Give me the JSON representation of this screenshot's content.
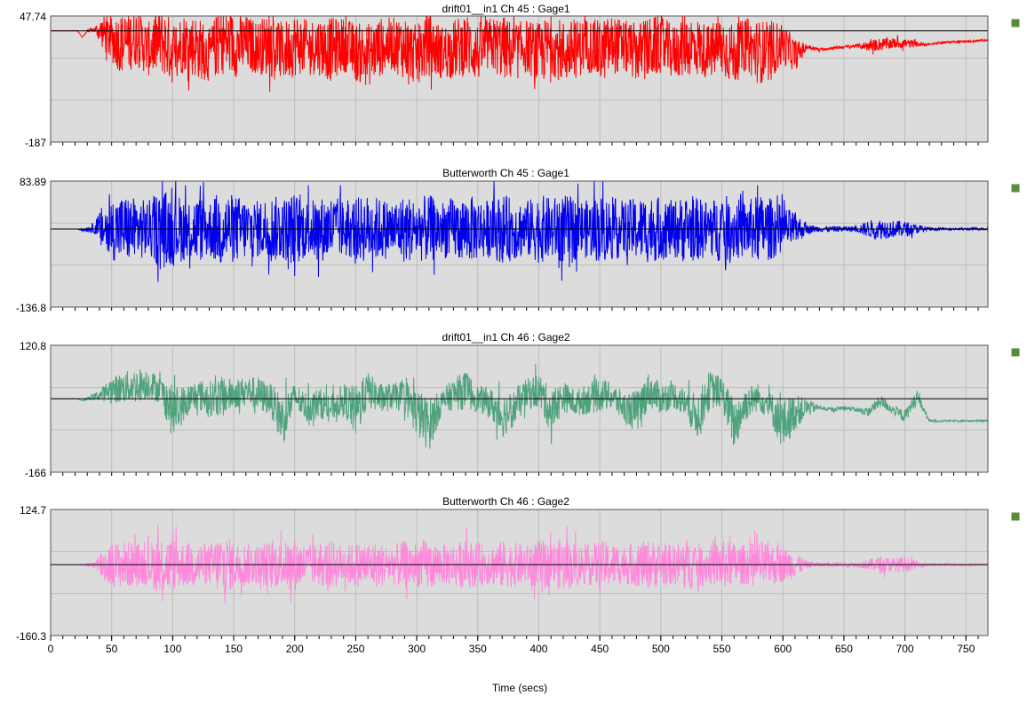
{
  "x_axis": {
    "label": "Time (secs)",
    "range": [
      0,
      768
    ],
    "ticks": [
      "0",
      "50",
      "100",
      "150",
      "200",
      "250",
      "300",
      "350",
      "400",
      "450",
      "500",
      "550",
      "600",
      "650",
      "700",
      "750"
    ],
    "tick_values": [
      0,
      50,
      100,
      150,
      200,
      250,
      300,
      350,
      400,
      450,
      500,
      550,
      600,
      650,
      700,
      750
    ]
  },
  "chart_data": [
    {
      "type": "line",
      "title": "drift01__in1  Ch 45 : Gage1",
      "color": "#ff0000",
      "ylim": [
        -187,
        47.74
      ],
      "y_top_label": "47.74",
      "y_bottom_label": "-187",
      "reference_line": 20,
      "x": [
        0,
        22,
        26,
        30,
        36,
        42,
        50,
        60,
        70,
        80,
        90,
        100,
        110,
        120,
        130,
        140,
        150,
        160,
        170,
        180,
        190,
        200,
        210,
        220,
        230,
        240,
        250,
        260,
        270,
        280,
        290,
        300,
        310,
        320,
        330,
        340,
        350,
        360,
        370,
        380,
        390,
        400,
        410,
        420,
        430,
        440,
        450,
        460,
        470,
        480,
        490,
        500,
        510,
        520,
        530,
        540,
        550,
        560,
        570,
        580,
        590,
        600,
        610,
        620,
        630,
        640,
        650,
        660,
        670,
        680,
        690,
        700,
        710,
        720,
        730,
        740,
        750,
        768
      ],
      "y": [
        20,
        20,
        8,
        20,
        22,
        18,
        5,
        -5,
        10,
        -15,
        5,
        -20,
        0,
        -10,
        -25,
        5,
        -8,
        -5,
        -10,
        -5,
        -20,
        -5,
        -10,
        -8,
        -15,
        -5,
        -20,
        -25,
        -10,
        -5,
        -10,
        -25,
        -5,
        -20,
        -15,
        -5,
        -20,
        -5,
        -10,
        -20,
        -8,
        -25,
        -5,
        -20,
        -15,
        -5,
        -20,
        -5,
        -10,
        -20,
        -15,
        -5,
        -20,
        -5,
        -10,
        -20,
        -8,
        -25,
        -5,
        -20,
        -15,
        -5,
        -25,
        -10,
        -15,
        -12,
        -10,
        -8,
        -8,
        -5,
        -3,
        -3,
        -5,
        -5,
        -2,
        0,
        0,
        3
      ],
      "noise_amplitude": [
        0,
        0,
        0,
        3,
        5,
        30,
        45,
        60,
        55,
        50,
        65,
        60,
        55,
        60,
        50,
        65,
        60,
        55,
        50,
        60,
        55,
        60,
        50,
        55,
        60,
        50,
        55,
        60,
        55,
        50,
        60,
        55,
        60,
        50,
        55,
        60,
        55,
        50,
        60,
        55,
        50,
        60,
        55,
        60,
        55,
        50,
        60,
        55,
        50,
        55,
        60,
        55,
        50,
        60,
        55,
        50,
        60,
        55,
        50,
        60,
        55,
        40,
        30,
        5,
        3,
        3,
        3,
        3,
        10,
        12,
        10,
        10,
        5,
        2,
        2,
        2,
        2,
        2
      ]
    },
    {
      "type": "line",
      "title": "Butterworth  Ch 45 : Gage1",
      "color": "#0000ee",
      "ylim": [
        -136.8,
        83.89
      ],
      "y_top_label": "83.89",
      "y_bottom_label": "-136.8",
      "reference_line": 0,
      "x": [
        0,
        22,
        26,
        30,
        36,
        42,
        50,
        60,
        70,
        80,
        90,
        100,
        110,
        120,
        130,
        140,
        150,
        160,
        170,
        180,
        190,
        200,
        210,
        220,
        230,
        240,
        250,
        260,
        270,
        280,
        290,
        300,
        310,
        320,
        330,
        340,
        350,
        360,
        370,
        380,
        390,
        400,
        410,
        420,
        430,
        440,
        450,
        460,
        470,
        480,
        490,
        500,
        510,
        520,
        530,
        540,
        550,
        560,
        570,
        580,
        590,
        600,
        610,
        620,
        630,
        640,
        650,
        660,
        670,
        680,
        690,
        700,
        710,
        720,
        730,
        740,
        750,
        768
      ],
      "y": [
        0,
        0,
        -2,
        0,
        2,
        0,
        0,
        0,
        0,
        0,
        0,
        0,
        0,
        0,
        0,
        0,
        0,
        0,
        0,
        0,
        0,
        0,
        0,
        0,
        0,
        0,
        0,
        0,
        0,
        0,
        0,
        0,
        0,
        0,
        0,
        0,
        0,
        0,
        0,
        0,
        0,
        0,
        0,
        0,
        0,
        0,
        0,
        0,
        0,
        0,
        0,
        0,
        0,
        0,
        0,
        0,
        0,
        0,
        0,
        0,
        0,
        0,
        0,
        0,
        0,
        0,
        0,
        0,
        0,
        0,
        0,
        0,
        0,
        0,
        0,
        0,
        0,
        0
      ],
      "noise_amplitude": [
        0,
        0,
        2,
        5,
        10,
        40,
        55,
        60,
        55,
        50,
        70,
        65,
        55,
        60,
        50,
        70,
        60,
        55,
        50,
        60,
        55,
        65,
        50,
        55,
        60,
        50,
        55,
        60,
        55,
        50,
        60,
        55,
        60,
        50,
        55,
        60,
        55,
        50,
        60,
        55,
        50,
        60,
        55,
        60,
        55,
        50,
        60,
        55,
        50,
        55,
        60,
        55,
        50,
        60,
        55,
        50,
        60,
        55,
        50,
        60,
        55,
        40,
        30,
        8,
        5,
        5,
        5,
        5,
        15,
        18,
        15,
        14,
        8,
        3,
        2,
        2,
        2,
        2
      ]
    },
    {
      "type": "line",
      "title": "drift01__in1  Ch 46 : Gage2",
      "color": "#4fa37c",
      "ylim": [
        -166,
        120.8
      ],
      "y_top_label": "120.8",
      "y_bottom_label": "-166",
      "reference_line": 0,
      "x": [
        0,
        22,
        26,
        30,
        36,
        42,
        50,
        60,
        70,
        80,
        90,
        100,
        110,
        120,
        130,
        140,
        150,
        160,
        170,
        180,
        190,
        200,
        210,
        220,
        230,
        240,
        250,
        260,
        270,
        280,
        290,
        300,
        310,
        320,
        330,
        340,
        350,
        360,
        370,
        380,
        390,
        400,
        410,
        420,
        430,
        440,
        450,
        460,
        470,
        480,
        490,
        500,
        510,
        520,
        530,
        540,
        550,
        560,
        570,
        580,
        590,
        600,
        610,
        620,
        630,
        640,
        650,
        660,
        670,
        680,
        690,
        700,
        710,
        720,
        730,
        740,
        750,
        768
      ],
      "y": [
        0,
        0,
        -5,
        0,
        5,
        10,
        20,
        25,
        30,
        35,
        20,
        -30,
        -10,
        10,
        0,
        5,
        10,
        20,
        10,
        0,
        -50,
        5,
        -20,
        -10,
        -20,
        0,
        -30,
        20,
        0,
        5,
        5,
        -30,
        -60,
        -10,
        10,
        20,
        0,
        -10,
        -40,
        -20,
        10,
        20,
        -30,
        5,
        -10,
        0,
        10,
        5,
        -20,
        -30,
        20,
        0,
        10,
        -10,
        -40,
        20,
        15,
        -60,
        -10,
        5,
        -20,
        -60,
        -30,
        -20,
        -20,
        -25,
        -20,
        -25,
        -30,
        -5,
        -25,
        -40,
        5,
        -50,
        -50,
        -50,
        -50,
        -50
      ],
      "noise_amplitude": [
        0,
        0,
        0,
        3,
        8,
        15,
        30,
        35,
        40,
        35,
        30,
        60,
        40,
        35,
        40,
        45,
        35,
        30,
        40,
        35,
        60,
        30,
        35,
        35,
        30,
        35,
        60,
        40,
        35,
        30,
        35,
        55,
        60,
        30,
        35,
        45,
        30,
        35,
        50,
        40,
        35,
        40,
        50,
        35,
        30,
        35,
        40,
        30,
        35,
        50,
        40,
        35,
        30,
        35,
        50,
        45,
        35,
        60,
        40,
        30,
        35,
        60,
        40,
        20,
        5,
        5,
        5,
        5,
        10,
        15,
        10,
        15,
        15,
        3,
        2,
        2,
        2,
        2
      ]
    },
    {
      "type": "line",
      "title": "Butterworth  Ch 46 : Gage2",
      "color": "#ff88dd",
      "ylim": [
        -160.3,
        124.7
      ],
      "y_top_label": "124.7",
      "y_bottom_label": "-160.3",
      "reference_line": 0,
      "x": [
        0,
        22,
        26,
        30,
        36,
        42,
        50,
        60,
        70,
        80,
        90,
        100,
        110,
        120,
        130,
        140,
        150,
        160,
        170,
        180,
        190,
        200,
        210,
        220,
        230,
        240,
        250,
        260,
        270,
        280,
        290,
        300,
        310,
        320,
        330,
        340,
        350,
        360,
        370,
        380,
        390,
        400,
        410,
        420,
        430,
        440,
        450,
        460,
        470,
        480,
        490,
        500,
        510,
        520,
        530,
        540,
        550,
        560,
        570,
        580,
        590,
        600,
        610,
        620,
        630,
        640,
        650,
        660,
        670,
        680,
        690,
        700,
        710,
        720,
        730,
        740,
        750,
        768
      ],
      "y": [
        0,
        0,
        0,
        0,
        0,
        0,
        0,
        0,
        0,
        0,
        0,
        0,
        0,
        0,
        0,
        0,
        0,
        0,
        0,
        0,
        0,
        0,
        0,
        0,
        0,
        0,
        0,
        0,
        0,
        0,
        0,
        0,
        0,
        0,
        0,
        0,
        0,
        0,
        0,
        0,
        0,
        0,
        0,
        0,
        0,
        0,
        0,
        0,
        0,
        0,
        0,
        0,
        0,
        0,
        0,
        0,
        0,
        0,
        0,
        0,
        0,
        0,
        0,
        0,
        0,
        0,
        0,
        0,
        0,
        0,
        0,
        0,
        0,
        0,
        0,
        0,
        0,
        0
      ],
      "noise_amplitude": [
        0,
        0,
        2,
        4,
        8,
        40,
        50,
        55,
        50,
        45,
        70,
        60,
        50,
        55,
        45,
        75,
        55,
        50,
        45,
        55,
        50,
        60,
        45,
        50,
        55,
        45,
        50,
        55,
        50,
        45,
        55,
        50,
        60,
        45,
        50,
        55,
        50,
        45,
        55,
        50,
        45,
        55,
        50,
        60,
        50,
        45,
        55,
        50,
        45,
        50,
        55,
        50,
        45,
        60,
        50,
        45,
        55,
        50,
        45,
        55,
        50,
        40,
        30,
        8,
        5,
        5,
        5,
        5,
        12,
        20,
        15,
        18,
        8,
        3,
        2,
        2,
        2,
        2
      ]
    }
  ],
  "legend_markers": [
    "#5b8c3a",
    "#5b8c3a",
    "#5b8c3a",
    "#5b8c3a"
  ]
}
